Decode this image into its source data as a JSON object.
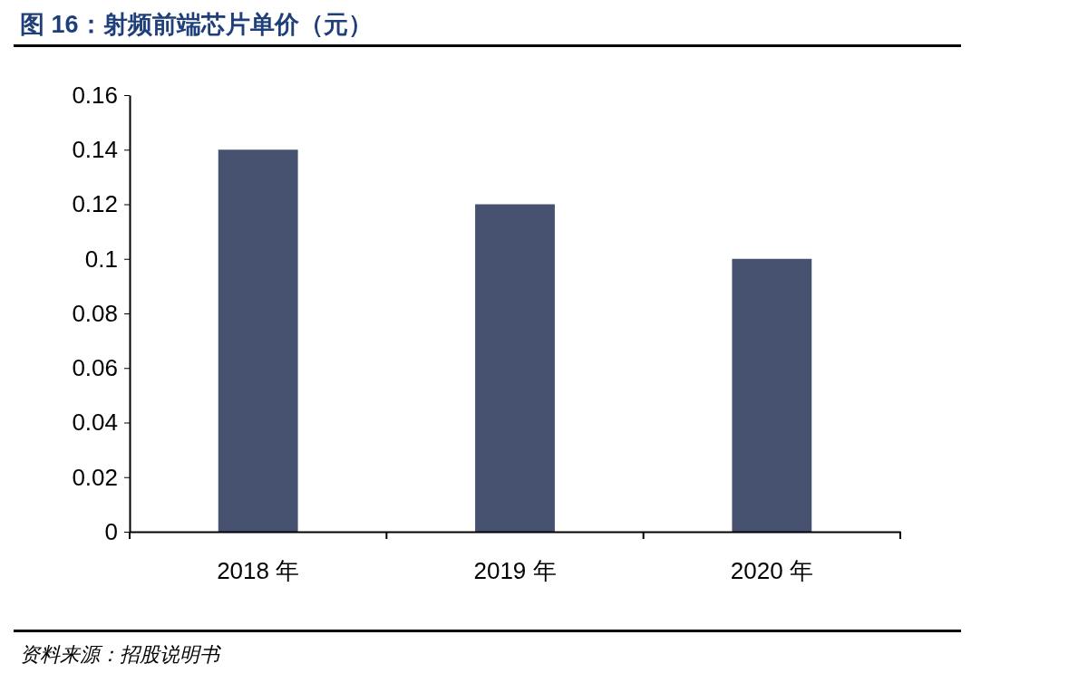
{
  "chart_data": {
    "type": "bar",
    "title": "图 16：射频前端芯片单价（元）",
    "categories": [
      "2018 年",
      "2019 年",
      "2020 年"
    ],
    "values": [
      0.14,
      0.12,
      0.1
    ],
    "color": "#465270",
    "ylim": [
      0,
      0.16
    ],
    "yticks": [
      0,
      0.02,
      0.04,
      0.06,
      0.08,
      {
        "value": 0.1,
        "label": "0.1"
      },
      0.12,
      0.14,
      0.16
    ],
    "grid": false,
    "annotations": [
      "资料来源：招股说明书"
    ]
  }
}
